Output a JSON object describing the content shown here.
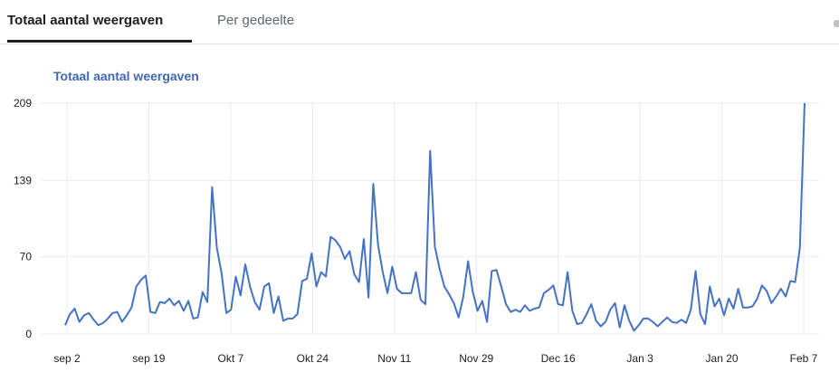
{
  "tabs": {
    "active_label": "Totaal aantal weergaven",
    "inactive_label": "Per gedeelte"
  },
  "chart_data": {
    "type": "line",
    "title": "Totaal aantal weergaven",
    "xlabel": "",
    "ylabel": "",
    "ylim": [
      0,
      209
    ],
    "y_ticks": [
      "0",
      "70",
      "139",
      "209"
    ],
    "x_tick_labels": [
      "sep 2",
      "sep 19",
      "Okt 7",
      "Okt 24",
      "Nov 11",
      "Nov 29",
      "Dec 16",
      "Jan 3",
      "Jan 20",
      "Feb 7"
    ],
    "grid": true,
    "line_color": "#4472c4",
    "series": [
      {
        "values": [
          8,
          18,
          23,
          11,
          17,
          19,
          13,
          8,
          10,
          14,
          19,
          20,
          11,
          17,
          24,
          43,
          49,
          53,
          20,
          19,
          29,
          28,
          32,
          26,
          30,
          21,
          30,
          14,
          15,
          38,
          29,
          133,
          78,
          55,
          19,
          22,
          52,
          35,
          63,
          43,
          29,
          22,
          43,
          46,
          19,
          34,
          12,
          14,
          14,
          18,
          48,
          50,
          73,
          43,
          56,
          52,
          88,
          85,
          79,
          68,
          75,
          54,
          47,
          86,
          33,
          136,
          81,
          56,
          37,
          61,
          41,
          37,
          37,
          37,
          56,
          31,
          27,
          166,
          79,
          59,
          43,
          36,
          28,
          15,
          34,
          66,
          38,
          21,
          30,
          11,
          57,
          58,
          43,
          27,
          20,
          22,
          20,
          26,
          21,
          23,
          24,
          37,
          40,
          44,
          27,
          26,
          56,
          21,
          9,
          10,
          18,
          27,
          12,
          7,
          11,
          22,
          28,
          6,
          26,
          12,
          3,
          8,
          14,
          14,
          11,
          7,
          11,
          15,
          11,
          10,
          13,
          10,
          22,
          57,
          18,
          9,
          43,
          25,
          32,
          17,
          32,
          23,
          41,
          24,
          24,
          25,
          32,
          44,
          39,
          28,
          34,
          41,
          34,
          48,
          47,
          78,
          209
        ]
      }
    ]
  }
}
